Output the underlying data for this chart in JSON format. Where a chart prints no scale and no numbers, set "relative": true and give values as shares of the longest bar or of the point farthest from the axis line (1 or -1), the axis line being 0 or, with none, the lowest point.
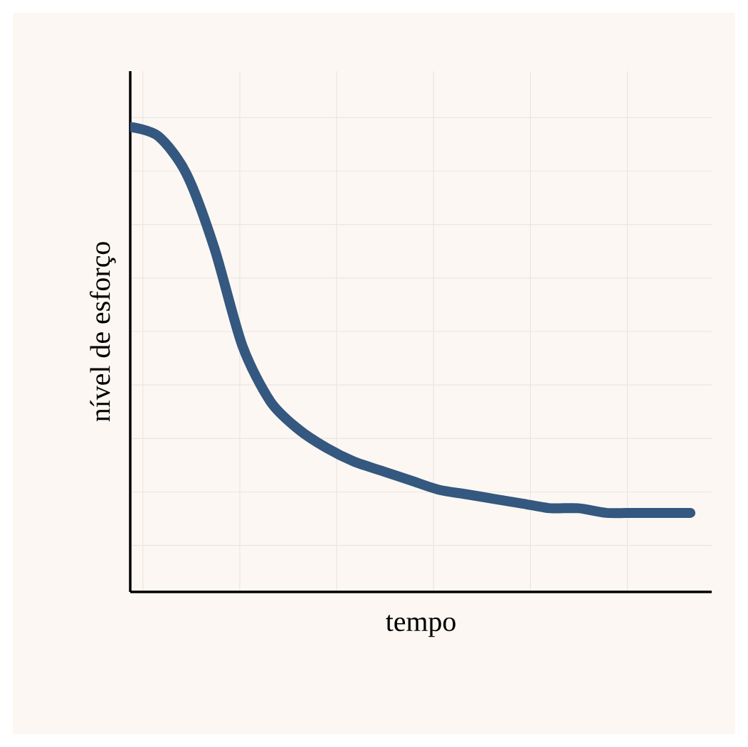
{
  "chart_data": {
    "type": "line",
    "relative": true,
    "xlabel": "tempo",
    "ylabel": "nível de esforço",
    "grid": true,
    "categories": [
      null,
      null,
      null,
      null,
      null,
      null,
      null,
      null,
      null,
      null,
      null,
      null,
      null,
      null,
      null,
      null,
      null,
      null,
      null,
      null,
      null
    ],
    "series": [
      {
        "color": "#34587f",
        "values": [
          1.0,
          0.98,
          0.9,
          0.74,
          0.53,
          0.41,
          0.35,
          0.31,
          0.28,
          0.26,
          0.24,
          0.22,
          0.21,
          0.2,
          0.19,
          0.18,
          0.18,
          0.17,
          0.17,
          0.17,
          0.17
        ]
      }
    ]
  }
}
